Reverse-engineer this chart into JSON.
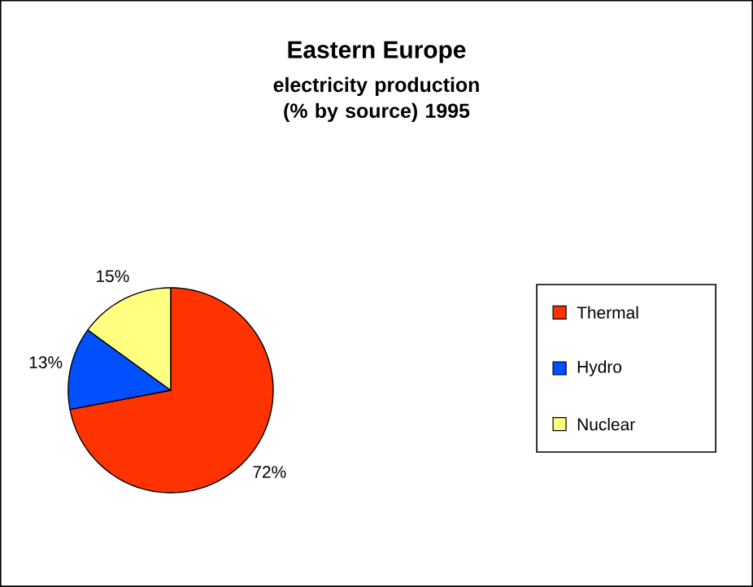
{
  "chart_data": {
    "type": "pie",
    "title": "Eastern Europe",
    "subtitle": "electricity production (% by source) 1995",
    "categories": [
      "Thermal",
      "Hydro",
      "Nuclear"
    ],
    "values": [
      72,
      13,
      15
    ],
    "colors": [
      "#ff3300",
      "#0050ff",
      "#ffff80"
    ],
    "value_labels": [
      "72%",
      "13%",
      "15%"
    ],
    "legend": "right"
  }
}
